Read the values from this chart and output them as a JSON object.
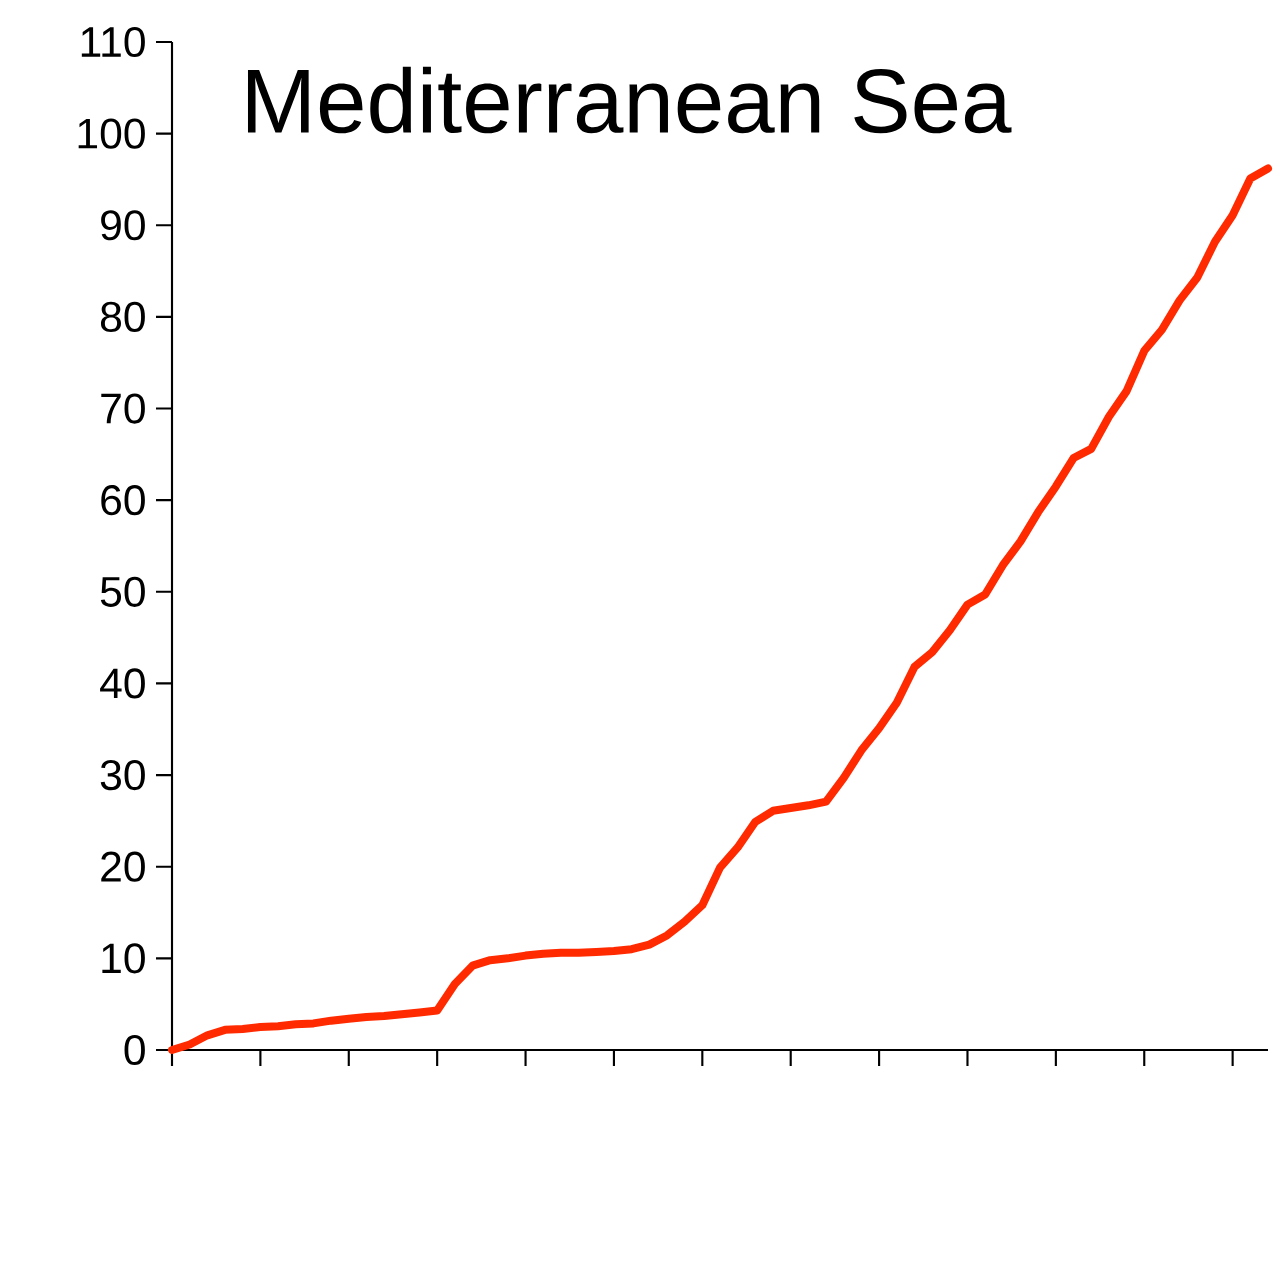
{
  "chart_data": {
    "type": "line",
    "title": "Mediterranean Sea",
    "categories": [
      null,
      null,
      null,
      null,
      null,
      null,
      null,
      null,
      null,
      null,
      null,
      null,
      null,
      null,
      null,
      null,
      null,
      null,
      null,
      null,
      null,
      null,
      null,
      null,
      null,
      null,
      null,
      null,
      null,
      null,
      null,
      null,
      null,
      null,
      null,
      null,
      null,
      null,
      null,
      null,
      null,
      null,
      null,
      null,
      null,
      null,
      null,
      null,
      null,
      null,
      null,
      null,
      null,
      null,
      null,
      null,
      null,
      null,
      null,
      null,
      null,
      null,
      null
    ],
    "ylim": [
      0,
      110
    ],
    "yticks": [
      0,
      10,
      20,
      30,
      40,
      50,
      60,
      70,
      80,
      90,
      100,
      110
    ],
    "tick_labels": "y",
    "marker": "none",
    "line_style": "solid",
    "series": [
      {
        "color": "#ff2a00",
        "values": [
          0,
          0.6,
          1.6,
          2.2,
          2.3,
          2.5,
          2.6,
          2.8,
          2.9,
          3.2,
          3.4,
          3.6,
          3.7,
          3.9,
          4.1,
          4.3,
          7.2,
          9.2,
          9.8,
          10.0,
          10.3,
          10.5,
          10.6,
          10.6,
          10.7,
          10.8,
          11.0,
          11.5,
          12.5,
          14.0,
          15.8,
          19.9,
          22.1,
          24.9,
          26.1,
          26.4,
          26.7,
          27.1,
          29.7,
          32.7,
          35.1,
          37.9,
          41.8,
          43.4,
          45.8,
          48.6,
          49.7,
          52.9,
          55.5,
          58.7,
          61.5,
          64.6,
          65.6,
          69.1,
          71.9,
          76.3,
          78.6,
          81.8,
          84.3,
          88.2,
          91.1,
          95.1,
          96.2
        ]
      }
    ]
  }
}
